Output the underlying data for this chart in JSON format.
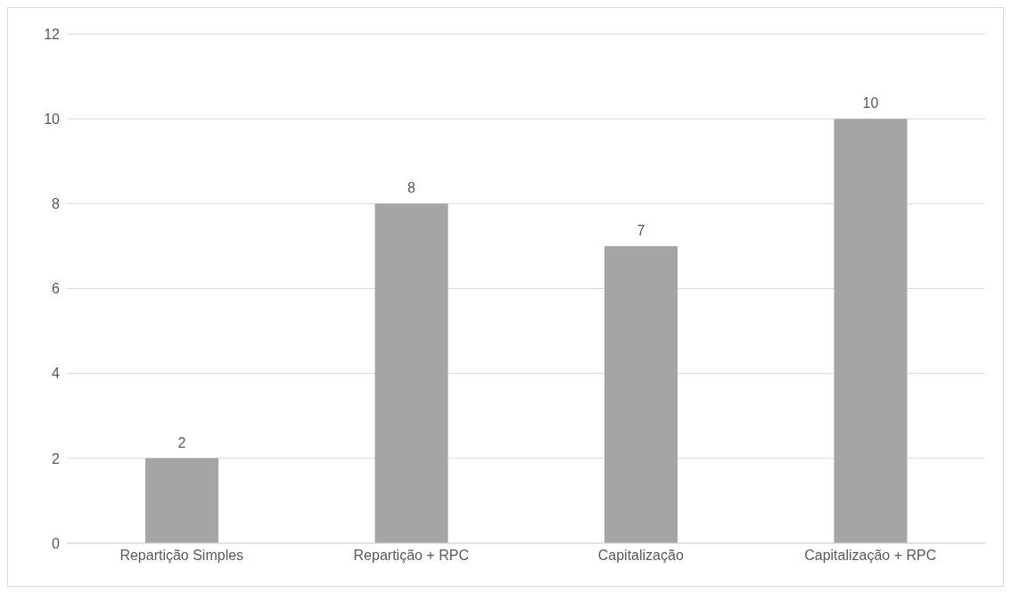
{
  "chart_data": {
    "type": "bar",
    "categories": [
      "Repartição Simples",
      "Repartição + RPC",
      "Capitalização",
      "Capitalização + RPC"
    ],
    "values": [
      2,
      8,
      7,
      10
    ],
    "color": "#a5a5a5",
    "ylim": [
      0,
      12
    ],
    "yticks": [
      0,
      2,
      4,
      6,
      8,
      10,
      12
    ],
    "grid": "y",
    "data_labels": true,
    "legend": false
  }
}
